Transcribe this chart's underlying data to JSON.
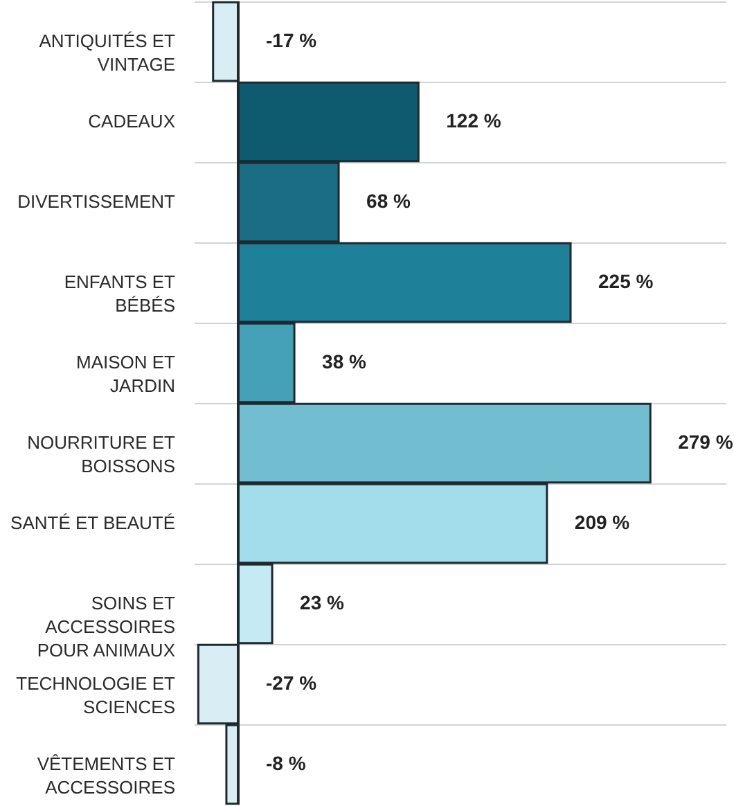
{
  "chart_data": {
    "type": "bar",
    "orientation": "horizontal",
    "categories": [
      "ANTIQUITÉS ET VINTAGE",
      "CADEAUX",
      "DIVERTISSEMENT",
      "ENFANTS ET BÉBÉS",
      "MAISON ET JARDIN",
      "NOURRITURE ET BOISSONS",
      "SANTÉ ET BEAUTÉ",
      "SOINS ET ACCESSOIRES POUR ANIMAUX",
      "TECHNOLOGIE ET SCIENCES",
      "VÊTEMENTS ET ACCESSOIRES"
    ],
    "values": [
      -17,
      122,
      68,
      225,
      38,
      279,
      209,
      23,
      -27,
      -8
    ],
    "value_labels": [
      "-17 %",
      "122 %",
      "68 %",
      "225 %",
      "38 %",
      "279 %",
      "209 %",
      "23 %",
      "-27 %",
      "-8 %"
    ],
    "colors": [
      "#d9eef4",
      "#0e5a6e",
      "#1a6d85",
      "#1e8099",
      "#44a1b8",
      "#72bdd0",
      "#a3dcea",
      "#c6eaf3",
      "#d9eef4",
      "#d9eef4"
    ],
    "xlim": [
      -30,
      330
    ],
    "tick_labels": "y",
    "grid": "y",
    "ref_lines": [
      {
        "axis": "x",
        "value": 0,
        "color": "#1e2a30"
      }
    ]
  }
}
